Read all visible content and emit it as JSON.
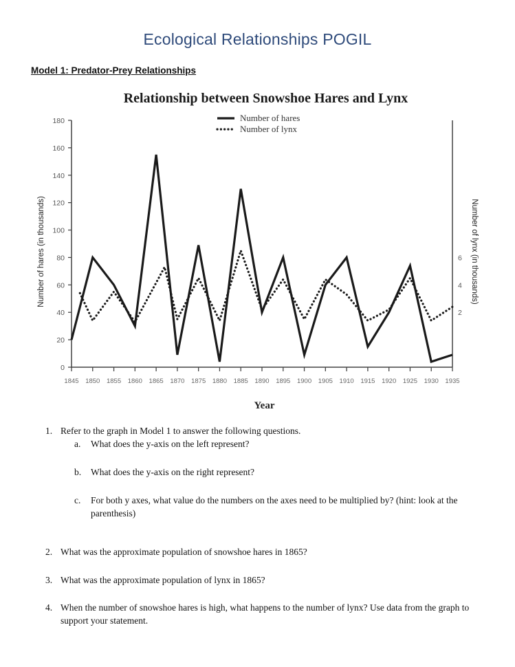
{
  "document": {
    "title": "Ecological Relationships POGIL",
    "model_heading": "Model 1: Predator-Prey Relationships"
  },
  "chart_data": {
    "type": "line",
    "title": "Relationship between Snowshoe Hares and Lynx",
    "xlabel": "Year",
    "ylabel_left": "Number of hares (in thousands)",
    "ylabel_right": "Number of lynx (in thousands)",
    "ylim_left": [
      0,
      180
    ],
    "yticks_left": [
      0,
      20,
      40,
      60,
      80,
      100,
      120,
      140,
      160,
      180
    ],
    "yticks_right": [
      2,
      4,
      6
    ],
    "xticks": [
      1845,
      1850,
      1855,
      1860,
      1865,
      1870,
      1875,
      1880,
      1885,
      1890,
      1895,
      1900,
      1905,
      1910,
      1915,
      1920,
      1925,
      1930,
      1935
    ],
    "grid": false,
    "legend_position": "top-center",
    "legend": [
      {
        "label": "Number of hares",
        "style": "solid"
      },
      {
        "label": "Number of lynx",
        "style": "dotted"
      }
    ],
    "series": [
      {
        "name": "Number of hares",
        "style": "solid",
        "axis": "left",
        "x": [
          1845,
          1850,
          1855,
          1860,
          1865,
          1870,
          1875,
          1880,
          1885,
          1890,
          1895,
          1900,
          1905,
          1910,
          1915,
          1920,
          1925,
          1930,
          1935
        ],
        "values": [
          20,
          80,
          60,
          30,
          155,
          9,
          89,
          4,
          130,
          40,
          80,
          9,
          60,
          80,
          15,
          40,
          74,
          4,
          9
        ]
      },
      {
        "name": "Number of lynx",
        "style": "dotted",
        "axis": "right",
        "x": [
          1847,
          1850,
          1855,
          1860,
          1867,
          1870,
          1875,
          1880,
          1885,
          1890,
          1895,
          1900,
          1905,
          1910,
          1915,
          1920,
          1925,
          1930,
          1935
        ],
        "values": [
          3.4,
          1.4,
          3.5,
          1.3,
          5.3,
          1.5,
          4.5,
          1.4,
          6.5,
          2.2,
          4.4,
          1.5,
          4.4,
          3.3,
          1.4,
          2.2,
          4.5,
          1.4,
          2.4
        ],
        "values_on_left_scale": [
          54,
          34,
          55,
          33,
          73,
          35,
          65,
          34,
          85,
          42,
          64,
          35,
          64,
          53,
          34,
          42,
          65,
          34,
          44
        ]
      }
    ]
  },
  "questions": [
    {
      "number": "1.",
      "text": "Refer to the graph in Model 1 to answer the following questions."
    },
    {
      "number": "a.",
      "text": "What does the y-axis on the left represent?"
    },
    {
      "number": "b.",
      "text": "What does the y-axis on the right represent?"
    },
    {
      "number": "c.",
      "text": "For both y axes, what value do the numbers on the axes need to be multiplied by? (hint: look at the parenthesis)"
    },
    {
      "number": "2.",
      "text": "What was the approximate population of snowshoe hares in 1865?"
    },
    {
      "number": "3.",
      "text": "What was the approximate population of lynx in 1865?"
    },
    {
      "number": "4.",
      "text": "When the number of snowshoe hares is high, what happens to the number of lynx? Use data from the graph to support your statement."
    }
  ]
}
